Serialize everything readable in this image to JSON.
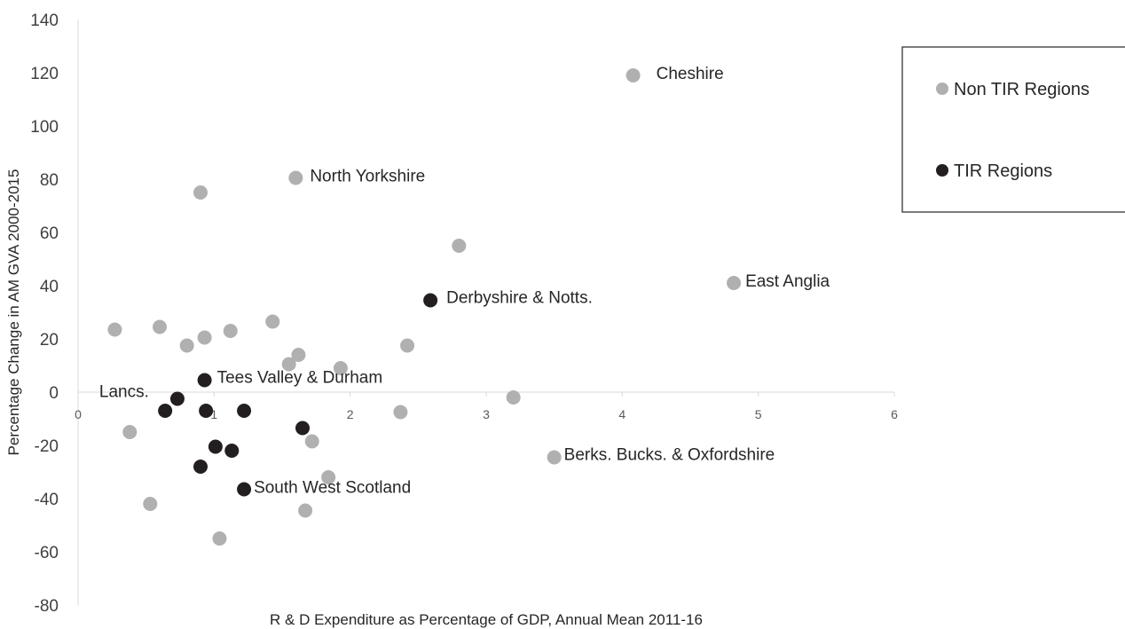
{
  "chart_data": {
    "type": "scatter",
    "xlabel": "R & D Expenditure as Percentage of GDP,  Annual Mean 2011-16",
    "ylabel": "Percentage Change in AM GVA 2000-2015",
    "xlim": [
      0,
      6
    ],
    "ylim": [
      -80,
      140
    ],
    "x_ticks": [
      0,
      1,
      2,
      3,
      4,
      5,
      6
    ],
    "y_ticks": [
      -80,
      -60,
      -40,
      -20,
      0,
      20,
      40,
      60,
      80,
      100,
      120,
      140
    ],
    "grid": false,
    "legend_position": "right",
    "series": [
      {
        "name": "Non TIR Regions",
        "color": "#b0b0b0",
        "points": [
          {
            "x": 4.08,
            "y": 119,
            "label": "Cheshire"
          },
          {
            "x": 1.6,
            "y": 80.5,
            "label": "North Yorkshire"
          },
          {
            "x": 0.9,
            "y": 75
          },
          {
            "x": 2.8,
            "y": 55
          },
          {
            "x": 4.82,
            "y": 41,
            "label": "East Anglia"
          },
          {
            "x": 0.27,
            "y": 23.5
          },
          {
            "x": 0.6,
            "y": 24.5
          },
          {
            "x": 0.8,
            "y": 17.5
          },
          {
            "x": 0.93,
            "y": 20.5
          },
          {
            "x": 1.12,
            "y": 23
          },
          {
            "x": 1.43,
            "y": 26.5
          },
          {
            "x": 1.55,
            "y": 10.5
          },
          {
            "x": 1.62,
            "y": 14
          },
          {
            "x": 1.93,
            "y": 9
          },
          {
            "x": 2.42,
            "y": 17.5
          },
          {
            "x": 2.37,
            "y": -7.5
          },
          {
            "x": 3.2,
            "y": -2
          },
          {
            "x": 3.5,
            "y": -24.5,
            "label": "Berks. Bucks. & Oxfordshire"
          },
          {
            "x": 0.38,
            "y": -15
          },
          {
            "x": 1.72,
            "y": -18.5
          },
          {
            "x": 1.84,
            "y": -32
          },
          {
            "x": 0.53,
            "y": -42
          },
          {
            "x": 1.67,
            "y": -44.5
          },
          {
            "x": 1.04,
            "y": -55
          }
        ]
      },
      {
        "name": "TIR Regions",
        "color": "#231f20",
        "points": [
          {
            "x": 2.59,
            "y": 34.5,
            "label": "Derbyshire & Notts."
          },
          {
            "x": 0.93,
            "y": 4.5,
            "label": "Tees Valley & Durham"
          },
          {
            "x": 0.73,
            "y": -2.5,
            "label": "Lancs."
          },
          {
            "x": 0.64,
            "y": -7
          },
          {
            "x": 0.94,
            "y": -7
          },
          {
            "x": 1.22,
            "y": -7
          },
          {
            "x": 1.65,
            "y": -13.5
          },
          {
            "x": 1.01,
            "y": -20.5
          },
          {
            "x": 1.13,
            "y": -22
          },
          {
            "x": 0.9,
            "y": -28
          },
          {
            "x": 1.22,
            "y": -36.5,
            "label": "South West Scotland"
          }
        ]
      }
    ]
  }
}
